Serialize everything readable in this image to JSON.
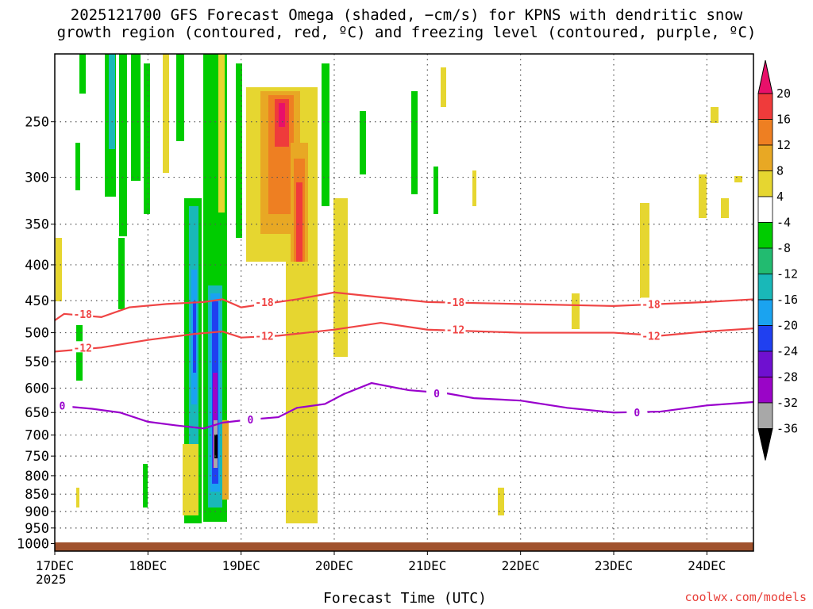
{
  "title_line1": "2025121700 GFS Forecast Omega (shaded, −cm/s) for KPNS with dendritic snow",
  "title_line2": "growth region (contoured, red, ºC) and freezing level (contoured, purple, ºC)",
  "credit": "coolwx.com/models",
  "chart_data": {
    "type": "heatmap",
    "xlabel": "Forecast Time (UTC)",
    "year_label": "2025",
    "x_ticks": [
      "17DEC",
      "18DEC",
      "19DEC",
      "20DEC",
      "21DEC",
      "22DEC",
      "23DEC",
      "24DEC"
    ],
    "x_range_days": [
      0,
      7.5
    ],
    "y_ticks": [
      250,
      300,
      350,
      400,
      450,
      500,
      550,
      600,
      650,
      700,
      750,
      800,
      850,
      900,
      950,
      1000
    ],
    "y_range_hpa": [
      200,
      1025
    ],
    "y_scale": "log-pressure (inverted)",
    "grid": "dotted",
    "colorbar": {
      "labels": [
        "20",
        "16",
        "12",
        "8",
        "4",
        "-4",
        "-8",
        "-12",
        "-16",
        "-20",
        "-24",
        "-28",
        "-32",
        "-36"
      ],
      "colors": [
        "#e8106a",
        "#ef3b3b",
        "#ee7f22",
        "#e8a824",
        "#e6d630",
        "#ffffff",
        "#00cc00",
        "#22bb70",
        "#19b8b8",
        "#1aa3f0",
        "#2040f0",
        "#6f10d0",
        "#9a05c7",
        "#a8a8a8",
        "#000000"
      ]
    },
    "contours": [
      {
        "label": "-18",
        "color": "#ef4444",
        "points": [
          [
            0,
            480
          ],
          [
            0.1,
            470
          ],
          [
            0.5,
            475
          ],
          [
            0.8,
            460
          ],
          [
            1.2,
            455
          ],
          [
            1.6,
            452
          ],
          [
            1.8,
            448
          ],
          [
            2.0,
            460
          ],
          [
            2.4,
            452
          ],
          [
            2.6,
            448
          ],
          [
            3.0,
            438
          ],
          [
            3.5,
            445
          ],
          [
            4.0,
            452
          ],
          [
            5.0,
            455
          ],
          [
            6.0,
            458
          ],
          [
            6.5,
            455
          ],
          [
            7.0,
            452
          ],
          [
            7.5,
            448
          ]
        ]
      },
      {
        "label": "-12",
        "color": "#ef4444",
        "points": [
          [
            0,
            532
          ],
          [
            0.5,
            525
          ],
          [
            1.0,
            512
          ],
          [
            1.5,
            502
          ],
          [
            1.8,
            498
          ],
          [
            2.0,
            508
          ],
          [
            2.4,
            505
          ],
          [
            2.7,
            500
          ],
          [
            3.0,
            495
          ],
          [
            3.5,
            484
          ],
          [
            4.0,
            495
          ],
          [
            5.0,
            500
          ],
          [
            6.0,
            500
          ],
          [
            6.5,
            505
          ],
          [
            7.0,
            498
          ],
          [
            7.5,
            493
          ]
        ]
      },
      {
        "label": "0",
        "color": "#9900cc",
        "points": [
          [
            0,
            635
          ],
          [
            0.4,
            642
          ],
          [
            0.7,
            650
          ],
          [
            1.0,
            670
          ],
          [
            1.3,
            678
          ],
          [
            1.6,
            685
          ],
          [
            1.8,
            672
          ],
          [
            2.1,
            665
          ],
          [
            2.4,
            660
          ],
          [
            2.6,
            640
          ],
          [
            2.9,
            632
          ],
          [
            3.1,
            612
          ],
          [
            3.4,
            590
          ],
          [
            3.8,
            604
          ],
          [
            4.2,
            610
          ],
          [
            4.5,
            620
          ],
          [
            5.0,
            625
          ],
          [
            5.5,
            640
          ],
          [
            6.0,
            650
          ],
          [
            6.5,
            648
          ],
          [
            7.0,
            635
          ],
          [
            7.5,
            628
          ]
        ]
      }
    ]
  }
}
